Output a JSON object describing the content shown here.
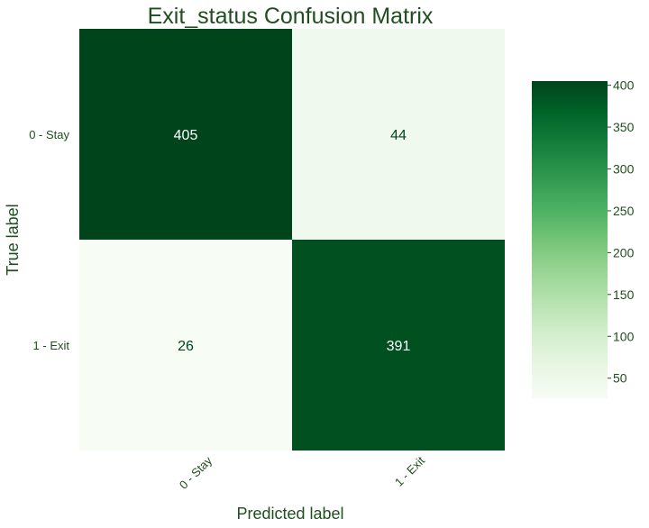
{
  "colors": {
    "text": "#1f4e1f",
    "cmap_low": "#f7fcf5",
    "cmap_high": "#00441b",
    "cell_text_dark": "#00441b",
    "cell_text_light": "#ffffff"
  },
  "chart_data": {
    "type": "heatmap",
    "title": "Exit_status Confusion Matrix",
    "xlabel": "Predicted label",
    "ylabel": "True label",
    "x_categories": [
      "0 - Stay",
      "1 - Exit"
    ],
    "y_categories": [
      "0 - Stay",
      "1 - Exit"
    ],
    "values": [
      [
        405,
        44
      ],
      [
        26,
        391
      ]
    ],
    "colorbar": {
      "ticks": [
        50,
        100,
        150,
        200,
        250,
        300,
        350,
        400
      ],
      "range": [
        26,
        405
      ],
      "colormap": "Greens"
    },
    "grid": false
  }
}
